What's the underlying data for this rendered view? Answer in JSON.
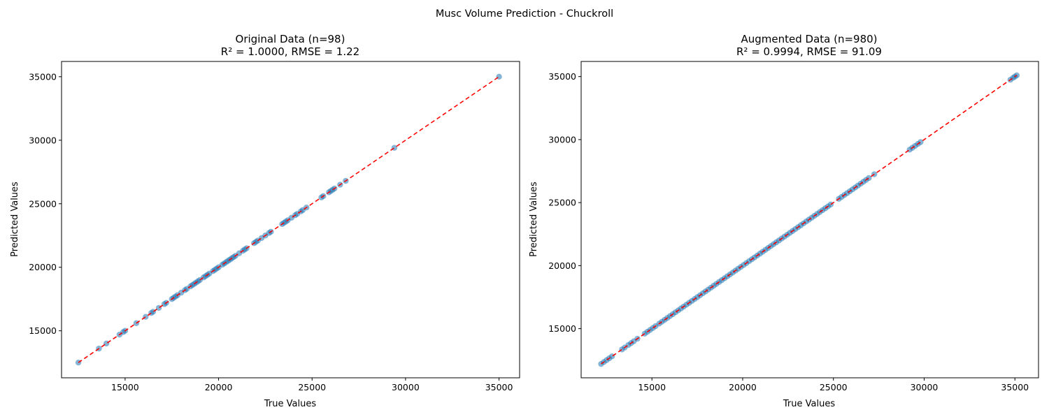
{
  "figure": {
    "suptitle": "Musc Volume Prediction - Chuckroll"
  },
  "chart_data": [
    {
      "type": "scatter",
      "title_line1": "Original Data (n=98)",
      "title_line2": "R² = 1.0000, RMSE = 1.22",
      "xlabel": "True Values",
      "ylabel": "Predicted Values",
      "xlim": [
        11600,
        36100
      ],
      "ylim": [
        11300,
        36200
      ],
      "xticks": [
        15000,
        20000,
        25000,
        30000,
        35000
      ],
      "yticks": [
        15000,
        20000,
        25000,
        30000,
        35000
      ],
      "point_color": "#1f77b4",
      "reference_line": {
        "from": [
          12500,
          12500
        ],
        "to": [
          35000,
          35000
        ],
        "color": "#ff0000",
        "style": "dashed"
      },
      "series": [
        {
          "x": [
            12500,
            13600,
            14000,
            14700,
            14900,
            15000,
            15600,
            16100,
            16400,
            16500,
            16800,
            17100,
            17200,
            17500,
            17600,
            17700,
            17800,
            18000,
            18200,
            18300,
            18500,
            18600,
            18700,
            18800,
            18900,
            19000,
            19200,
            19300,
            19400,
            19500,
            19700,
            19800,
            19900,
            20000,
            20200,
            20300,
            20400,
            20500,
            20600,
            20700,
            20800,
            20900,
            21100,
            21300,
            21400,
            21500,
            21900,
            22000,
            22100,
            22300,
            22500,
            22700,
            22800,
            23400,
            23500,
            23600,
            23700,
            23900,
            24100,
            24200,
            24400,
            24500,
            24700,
            25500,
            25600,
            25900,
            26000,
            26100,
            26200,
            26500,
            26800,
            29400,
            35000
          ],
          "y": [
            12500,
            13600,
            14000,
            14700,
            14900,
            15000,
            15600,
            16100,
            16400,
            16500,
            16800,
            17100,
            17200,
            17500,
            17600,
            17700,
            17800,
            18000,
            18200,
            18300,
            18500,
            18600,
            18700,
            18800,
            18900,
            19000,
            19200,
            19300,
            19400,
            19500,
            19700,
            19800,
            19900,
            20000,
            20200,
            20300,
            20400,
            20500,
            20600,
            20700,
            20800,
            20900,
            21100,
            21300,
            21400,
            21500,
            21900,
            22000,
            22100,
            22300,
            22500,
            22700,
            22800,
            23400,
            23500,
            23600,
            23700,
            23900,
            24100,
            24200,
            24400,
            24500,
            24700,
            25500,
            25600,
            25900,
            26000,
            26100,
            26200,
            26500,
            26800,
            29400,
            35000
          ]
        }
      ]
    },
    {
      "type": "scatter",
      "title_line1": "Augmented Data (n=980)",
      "title_line2": "R² = 0.9994, RMSE = 91.09",
      "xlabel": "True Values",
      "ylabel": "Predicted Values",
      "xlim": [
        11100,
        36300
      ],
      "ylim": [
        11100,
        36200
      ],
      "xticks": [
        15000,
        20000,
        25000,
        30000,
        35000
      ],
      "yticks": [
        15000,
        20000,
        25000,
        30000,
        35000
      ],
      "point_color": "#1f77b4",
      "reference_line": {
        "from": [
          12200,
          12200
        ],
        "to": [
          35100,
          35100
        ],
        "color": "#ff0000",
        "style": "dashed"
      },
      "series": [
        {
          "x": [
            12200,
            12350,
            12500,
            12650,
            12800,
            13350,
            13500,
            13700,
            13850,
            14000,
            14200,
            14600,
            14750,
            14900,
            15050,
            15200,
            15400,
            15550,
            15700,
            15850,
            16000,
            16150,
            16300,
            16450,
            16600,
            16750,
            16900,
            17050,
            17200,
            17350,
            17500,
            17650,
            17800,
            17950,
            18100,
            18250,
            18400,
            18550,
            18700,
            18850,
            19000,
            19150,
            19300,
            19450,
            19600,
            19750,
            19900,
            20050,
            20200,
            20350,
            20500,
            20650,
            20800,
            20950,
            21100,
            21250,
            21400,
            21550,
            21700,
            21850,
            22000,
            22150,
            22300,
            22450,
            22600,
            22750,
            22900,
            23050,
            23200,
            23350,
            23500,
            23650,
            23800,
            23950,
            24100,
            24250,
            24400,
            24550,
            24700,
            24850,
            25300,
            25450,
            25600,
            25750,
            25900,
            26050,
            26200,
            26350,
            26500,
            26650,
            26800,
            26950,
            27250,
            29200,
            29350,
            29500,
            29650,
            29800,
            34750,
            34900,
            35000,
            35100
          ],
          "y": [
            12200,
            12350,
            12500,
            12650,
            12800,
            13350,
            13500,
            13700,
            13850,
            14000,
            14200,
            14600,
            14750,
            14900,
            15050,
            15200,
            15400,
            15550,
            15700,
            15850,
            16000,
            16150,
            16300,
            16450,
            16600,
            16750,
            16900,
            17050,
            17200,
            17350,
            17500,
            17650,
            17800,
            17950,
            18100,
            18250,
            18400,
            18550,
            18700,
            18850,
            19000,
            19150,
            19300,
            19450,
            19600,
            19750,
            19900,
            20050,
            20200,
            20350,
            20500,
            20650,
            20800,
            20950,
            21100,
            21250,
            21400,
            21550,
            21700,
            21850,
            22000,
            22150,
            22300,
            22450,
            22600,
            22750,
            22900,
            23050,
            23200,
            23350,
            23500,
            23650,
            23800,
            23950,
            24100,
            24250,
            24400,
            24550,
            24700,
            24850,
            25300,
            25450,
            25600,
            25750,
            25900,
            26050,
            26200,
            26350,
            26500,
            26650,
            26800,
            26950,
            27250,
            29200,
            29350,
            29500,
            29650,
            29800,
            34750,
            34900,
            35000,
            35100
          ]
        }
      ]
    }
  ]
}
